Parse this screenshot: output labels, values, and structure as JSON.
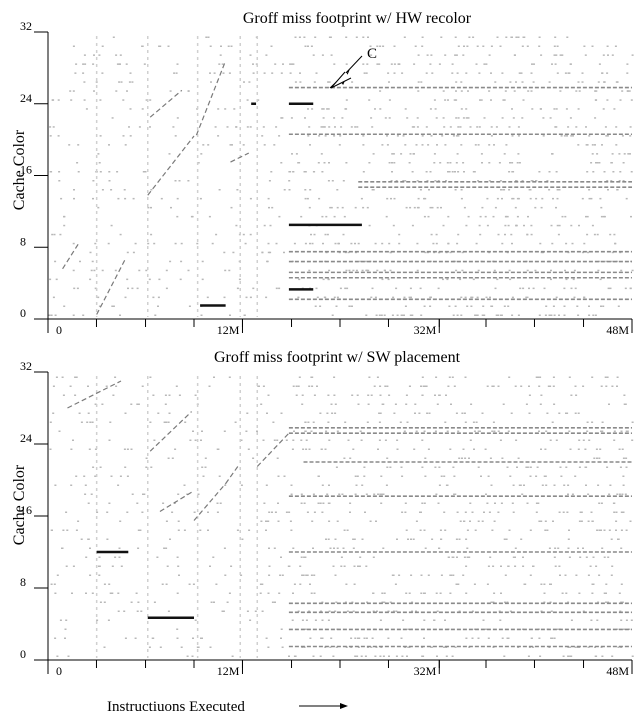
{
  "chart_data": [
    {
      "type": "scatter",
      "title": "Groff miss footprint w/ HW recolor",
      "ylabel": "Cache Color",
      "ylim": [
        0,
        32
      ],
      "yticks": [
        "0",
        "8",
        "16",
        "24",
        "32"
      ],
      "xlim": [
        0,
        48
      ],
      "xticks": [
        "0",
        "12M",
        "32M",
        "48M"
      ],
      "annotation": "C",
      "series": [
        {
          "segments": [
            {
              "x0": 19.8,
              "x1": 21.8,
              "y": 24
            },
            {
              "x0": 19.8,
              "x1": 25.8,
              "y": 10.5
            },
            {
              "x0": 19.8,
              "x1": 21.8,
              "y": 3.3
            },
            {
              "x0": 12.5,
              "x1": 14.6,
              "y": 1.5
            },
            {
              "x0": 16.7,
              "x1": 17.1,
              "y": 24
            },
            {
              "x0": 19.8,
              "x1": 48,
              "y": 7.5
            },
            {
              "x0": 19.8,
              "x1": 48,
              "y": 6.4
            },
            {
              "x0": 19.8,
              "x1": 48,
              "y": 5.2
            },
            {
              "x0": 19.8,
              "x1": 48,
              "y": 4.6
            },
            {
              "x0": 19.8,
              "x1": 48,
              "y": 2.2
            },
            {
              "x0": 25.5,
              "x1": 48,
              "y": 15.3
            },
            {
              "x0": 25.5,
              "x1": 48,
              "y": 14.7
            },
            {
              "x0": 19.8,
              "x1": 48,
              "y": 25.8
            },
            {
              "x0": 19.8,
              "x1": 48,
              "y": 20.6
            }
          ],
          "diagonals": [
            {
              "x0": 8.2,
              "x1": 12.0,
              "y0": 13.8,
              "y1": 20.4
            },
            {
              "x0": 12.2,
              "x1": 14.6,
              "y0": 20.5,
              "y1": 28.8
            },
            {
              "x0": 4.0,
              "x1": 6.4,
              "y0": 0.5,
              "y1": 6.8
            },
            {
              "x0": 1.2,
              "x1": 2.6,
              "y0": 5.6,
              "y1": 8.6
            },
            {
              "x0": 8.4,
              "x1": 11.0,
              "y0": 22.5,
              "y1": 25.5
            },
            {
              "x0": 15.0,
              "x1": 16.5,
              "y0": 17.5,
              "y1": 18.5
            }
          ]
        }
      ]
    },
    {
      "type": "scatter",
      "title": "Groff miss footprint w/ SW placement",
      "ylabel": "Cache Color",
      "ylim": [
        0,
        32
      ],
      "yticks": [
        "0",
        "8",
        "16",
        "24",
        "32"
      ],
      "xlim": [
        0,
        48
      ],
      "xticks": [
        "0",
        "12M",
        "32M",
        "48M"
      ],
      "xlabel": "Instructiuons Executed",
      "series": [
        {
          "segments": [
            {
              "x0": 19.8,
              "x1": 48,
              "y": 25.8
            },
            {
              "x0": 19.8,
              "x1": 48,
              "y": 25.2
            },
            {
              "x0": 21.0,
              "x1": 48,
              "y": 22.0
            },
            {
              "x0": 19.8,
              "x1": 48,
              "y": 18.2
            },
            {
              "x0": 19.8,
              "x1": 48,
              "y": 12.0
            },
            {
              "x0": 19.8,
              "x1": 48,
              "y": 6.3
            },
            {
              "x0": 19.8,
              "x1": 48,
              "y": 5.3
            },
            {
              "x0": 19.8,
              "x1": 48,
              "y": 3.4
            },
            {
              "x0": 19.8,
              "x1": 48,
              "y": 1.5
            },
            {
              "x0": 8.2,
              "x1": 12.0,
              "y0": 4.7,
              "y": 4.7
            },
            {
              "x0": 4.0,
              "x1": 6.6,
              "y": 12.0
            }
          ],
          "diagonals": [
            {
              "x0": 1.6,
              "x1": 6.0,
              "y0": 28.0,
              "y1": 31.0
            },
            {
              "x0": 12.0,
              "x1": 14.6,
              "y0": 15.5,
              "y1": 19.6
            },
            {
              "x0": 14.6,
              "x1": 15.6,
              "y0": 19.6,
              "y1": 21.5
            },
            {
              "x0": 8.4,
              "x1": 11.8,
              "y0": 23.2,
              "y1": 27.6
            },
            {
              "x0": 17.2,
              "x1": 19.8,
              "y0": 21.5,
              "y1": 25.2
            },
            {
              "x0": 9.2,
              "x1": 12.0,
              "y0": 16.5,
              "y1": 18.8
            }
          ]
        }
      ]
    }
  ]
}
